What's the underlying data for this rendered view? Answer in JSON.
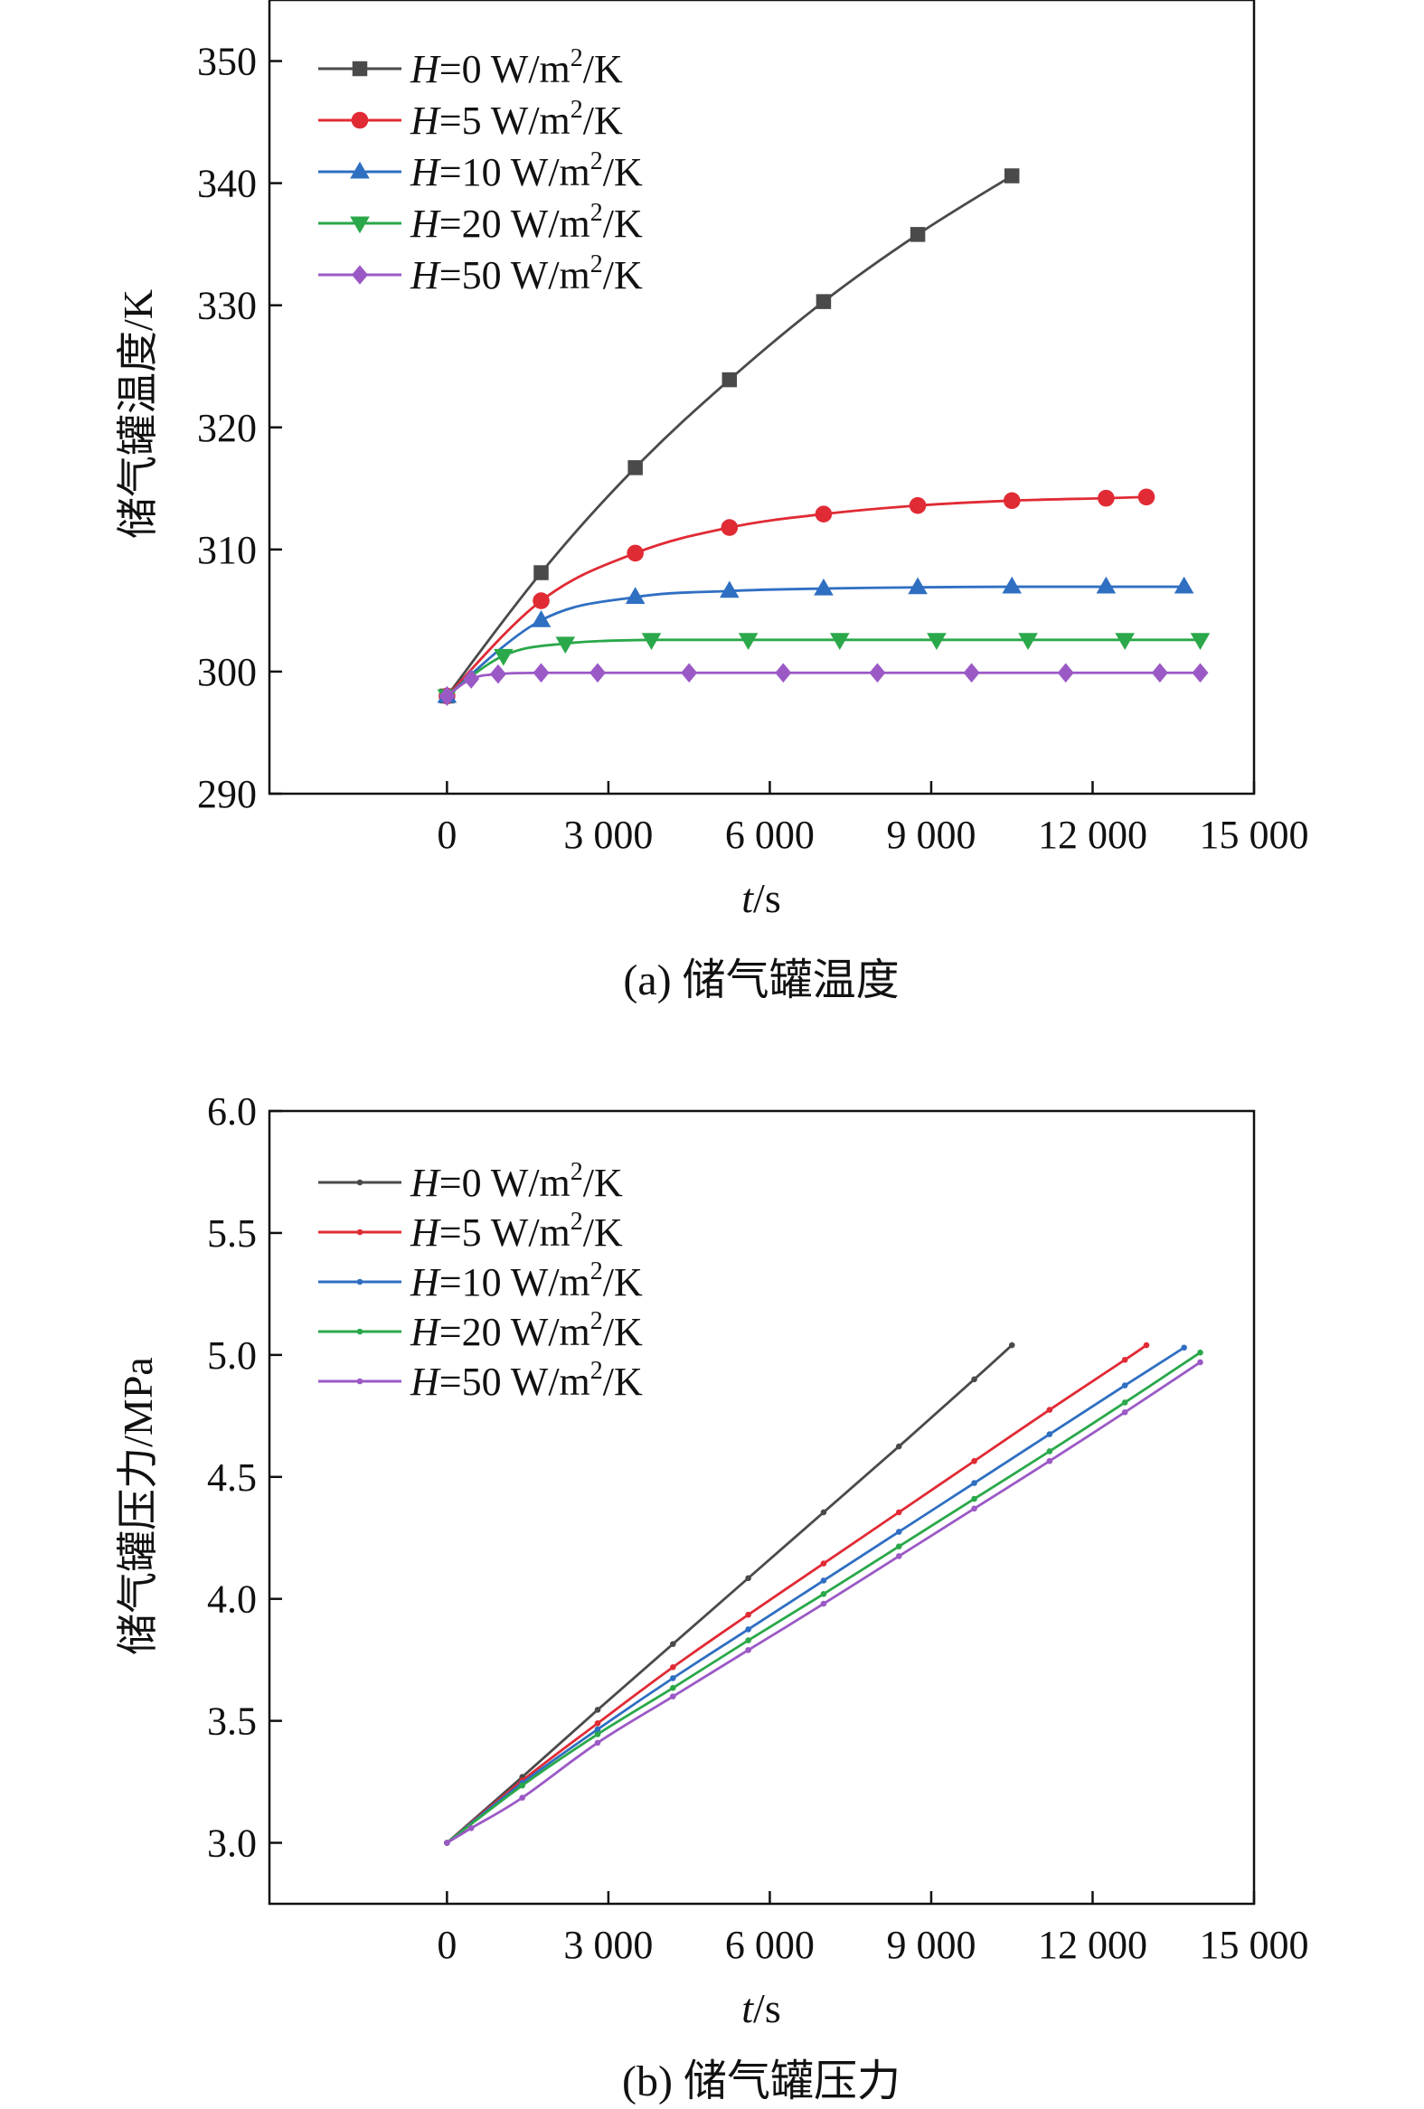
{
  "chart_data": [
    {
      "type": "line",
      "panel": "a",
      "caption": "(a) 储气罐温度",
      "xlabel_var": "t",
      "xlabel_unit": "/s",
      "ylabel": "储气罐温度/K",
      "xlim": [
        -3300,
        15000
      ],
      "ylim": [
        290,
        355
      ],
      "xticks": [
        0,
        3000,
        6000,
        9000,
        12000,
        15000
      ],
      "xtick_labels": [
        "0",
        "3 000",
        "6 000",
        "9 000",
        "12 000",
        "15 000"
      ],
      "yticks": [
        290,
        300,
        310,
        320,
        330,
        340,
        350
      ],
      "ytick_labels": [
        "290",
        "300",
        "310",
        "320",
        "330",
        "340",
        "350"
      ],
      "legend_position": "top-left",
      "series": [
        {
          "name": "H=0 W/m²/K",
          "label_var": "H",
          "label_rest": "=0 W/m",
          "label_sup": "2",
          "label_tail": "/K",
          "color": "#4a4a4a",
          "marker": "square",
          "x": [
            0,
            1750,
            3500,
            5250,
            7000,
            8750,
            10500
          ],
          "y": [
            298,
            308.1,
            316.7,
            323.9,
            330.3,
            335.8,
            340.6
          ]
        },
        {
          "name": "H=5 W/m²/K",
          "label_var": "H",
          "label_rest": "=5 W/m",
          "label_sup": "2",
          "label_tail": "/K",
          "color": "#e02b35",
          "marker": "circle",
          "x": [
            0,
            1750,
            3500,
            5250,
            7000,
            8750,
            10500,
            12250,
            13000
          ],
          "y": [
            298,
            305.8,
            309.7,
            311.8,
            312.9,
            313.6,
            314.0,
            314.2,
            314.3
          ]
        },
        {
          "name": "H=10 W/m²/K",
          "label_var": "H",
          "label_rest": "=10 W/m",
          "label_sup": "2",
          "label_tail": "/K",
          "color": "#2f6fc2",
          "marker": "triangle-up",
          "x": [
            0,
            1750,
            3500,
            5250,
            7000,
            8750,
            10500,
            12250,
            13700
          ],
          "y": [
            298,
            304.2,
            306.1,
            306.6,
            306.8,
            306.9,
            306.95,
            306.95,
            306.95
          ]
        },
        {
          "name": "H=20 W/m²/K",
          "label_var": "H",
          "label_rest": "=20 W/m",
          "label_sup": "2",
          "label_tail": "/K",
          "color": "#2aa84a",
          "marker": "triangle-down",
          "x": [
            0,
            1050,
            2200,
            3800,
            5600,
            7300,
            9100,
            10800,
            12600,
            14000
          ],
          "y": [
            298,
            301.3,
            302.3,
            302.6,
            302.6,
            302.6,
            302.6,
            302.6,
            302.6,
            302.6
          ]
        },
        {
          "name": "H=50 W/m²/K",
          "label_var": "H",
          "label_rest": "=50 W/m",
          "label_sup": "2",
          "label_tail": "/K",
          "color": "#9b59c6",
          "marker": "diamond",
          "x": [
            0,
            450,
            950,
            1750,
            2800,
            4500,
            6250,
            8000,
            9750,
            11500,
            13250,
            14000
          ],
          "y": [
            298,
            299.4,
            299.8,
            299.9,
            299.9,
            299.9,
            299.9,
            299.9,
            299.9,
            299.9,
            299.9,
            299.9
          ]
        }
      ]
    },
    {
      "type": "line",
      "panel": "b",
      "caption": "(b) 储气罐压力",
      "xlabel_var": "t",
      "xlabel_unit": "/s",
      "ylabel": "储气罐压力/MPa",
      "xlim": [
        -3300,
        15000
      ],
      "ylim": [
        2.75,
        6.0
      ],
      "xticks": [
        0,
        3000,
        6000,
        9000,
        12000,
        15000
      ],
      "xtick_labels": [
        "0",
        "3 000",
        "6 000",
        "9 000",
        "12 000",
        "15 000"
      ],
      "yticks": [
        3.0,
        3.5,
        4.0,
        4.5,
        5.0,
        5.5,
        6.0
      ],
      "ytick_labels": [
        "3.0",
        "3.5",
        "4.0",
        "4.5",
        "5.0",
        "5.5",
        "6.0"
      ],
      "legend_position": "top-left",
      "series": [
        {
          "name": "H=0 W/m²/K",
          "label_var": "H",
          "label_rest": "=0 W/m",
          "label_sup": "2",
          "label_tail": "/K",
          "color": "#4a4a4a",
          "marker": "small-dot",
          "x": [
            0,
            1400,
            2800,
            4200,
            5600,
            7000,
            8400,
            9800,
            10500
          ],
          "y": [
            3.0,
            3.27,
            3.545,
            3.815,
            4.085,
            4.355,
            4.625,
            4.9,
            5.04
          ]
        },
        {
          "name": "H=5 W/m²/K",
          "label_var": "H",
          "label_rest": "=5 W/m",
          "label_sup": "2",
          "label_tail": "/K",
          "color": "#e02b35",
          "marker": "small-dot",
          "x": [
            0,
            1400,
            2800,
            4200,
            5600,
            7000,
            8400,
            9800,
            11200,
            12600,
            13000
          ],
          "y": [
            3.0,
            3.255,
            3.49,
            3.72,
            3.935,
            4.145,
            4.355,
            4.565,
            4.775,
            4.98,
            5.04
          ]
        },
        {
          "name": "H=10 W/m²/K",
          "label_var": "H",
          "label_rest": "=10 W/m",
          "label_sup": "2",
          "label_tail": "/K",
          "color": "#2f6fc2",
          "marker": "small-dot",
          "x": [
            0,
            1400,
            2800,
            4200,
            5600,
            7000,
            8400,
            9800,
            11200,
            12600,
            13700
          ],
          "y": [
            3.0,
            3.245,
            3.465,
            3.675,
            3.875,
            4.075,
            4.275,
            4.475,
            4.675,
            4.875,
            5.03
          ]
        },
        {
          "name": "H=20 W/m²/K",
          "label_var": "H",
          "label_rest": "=20 W/m",
          "label_sup": "2",
          "label_tail": "/K",
          "color": "#2aa84a",
          "marker": "small-dot",
          "x": [
            0,
            1400,
            2800,
            4200,
            5600,
            7000,
            8400,
            9800,
            11200,
            12600,
            14000
          ],
          "y": [
            3.0,
            3.235,
            3.445,
            3.635,
            3.83,
            4.02,
            4.215,
            4.41,
            4.605,
            4.805,
            5.01
          ]
        },
        {
          "name": "H=50 W/m²/K",
          "label_var": "H",
          "label_rest": "=50 W/m",
          "label_sup": "2",
          "label_tail": "/K",
          "color": "#9b59c6",
          "marker": "small-dot",
          "x": [
            0,
            450,
            1400,
            2800,
            4200,
            5600,
            7000,
            8400,
            9800,
            11200,
            12600,
            14000
          ],
          "y": [
            3.0,
            3.06,
            3.185,
            3.41,
            3.6,
            3.79,
            3.98,
            4.175,
            4.37,
            4.565,
            4.765,
            4.97
          ]
        }
      ]
    }
  ]
}
